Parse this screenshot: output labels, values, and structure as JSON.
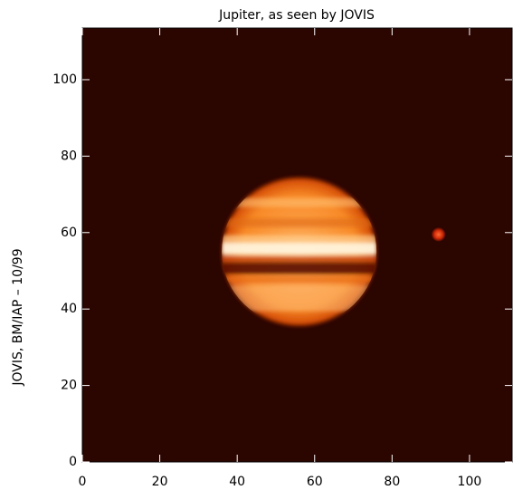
{
  "chart_data": {
    "type": "image",
    "title": "Jupiter, as seen by JOVIS",
    "ylabel": "JOVIS,  BM/IAP  –  10/99",
    "xlim": [
      0,
      111
    ],
    "ylim": [
      0,
      113.5
    ],
    "xticks": [
      0,
      20,
      40,
      60,
      80,
      100
    ],
    "yticks": [
      0,
      20,
      40,
      60,
      80,
      100
    ],
    "background": "#2b0500",
    "bodies": [
      {
        "x": 56,
        "y": 55,
        "rx": 20,
        "ry": 19.5
      },
      {
        "x": 92,
        "y": 59.5,
        "rx": 1.8,
        "ry": 1.8
      }
    ]
  }
}
